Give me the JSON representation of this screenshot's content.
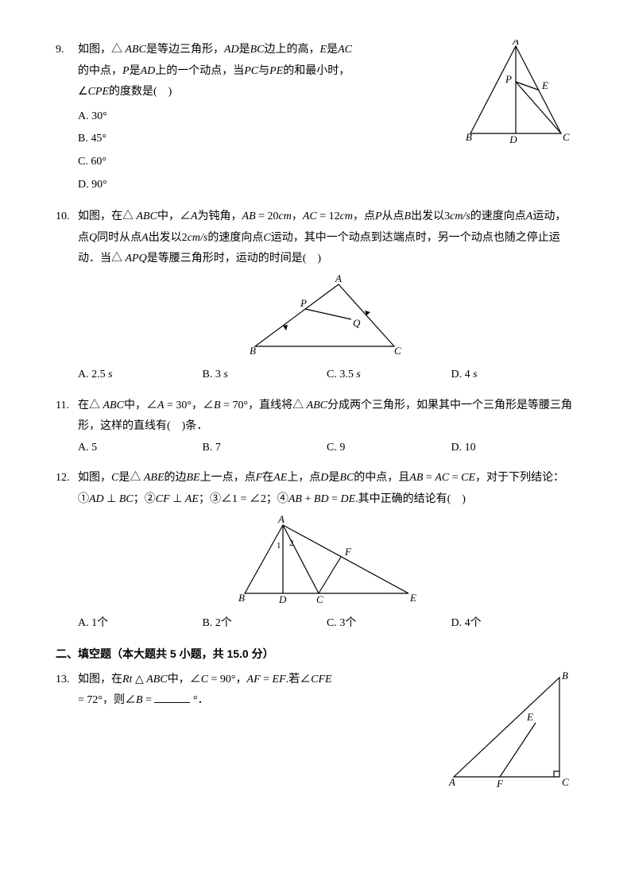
{
  "q9": {
    "num": "9.",
    "text1": "如图，△ <i>ABC</i>是等边三角形，<i>AD</i>是<i>BC</i>边上的高，<i>E</i>是<i>AC</i>",
    "text2": "的中点，<i>P</i>是<i>AD</i>上的一个动点，当<i>PC</i>与<i>PE</i>的和最小时，",
    "text3": "∠<i>CPE</i>的度数是(　)",
    "optA": "A. 30°",
    "optB": "B. 45°",
    "optC": "C. 60°",
    "optD": "D. 90°",
    "fig": {
      "A": "A",
      "B": "B",
      "C": "C",
      "D": "D",
      "E": "E",
      "P": "P"
    }
  },
  "q10": {
    "num": "10.",
    "text": "如图，在△ <i>ABC</i>中，∠<i>A</i>为钝角，<i>AB</i> = 20<i>cm</i>，<i>AC</i> = 12<i>cm</i>，点<i>P</i>从点<i>B</i>出发以3<i>cm/s</i>的速度向点<i>A</i>运动，点<i>Q</i>同时从点<i>A</i>出发以2<i>cm/s</i>的速度向点<i>C</i>运动，其中一个动点到达端点时，另一个动点也随之停止运动．当△ <i>APQ</i>是等腰三角形时，运动的时间是(　)",
    "optA": "A. 2.5 <i>s</i>",
    "optB": "B. 3 <i>s</i>",
    "optC": "C. 3.5 <i>s</i>",
    "optD": "D. 4 <i>s</i>",
    "fig": {
      "A": "A",
      "B": "B",
      "C": "C",
      "P": "P",
      "Q": "Q"
    }
  },
  "q11": {
    "num": "11.",
    "text": "在△ <i>ABC</i>中，∠<i>A</i> = 30°，∠<i>B</i> = 70°，直线将△ <i>ABC</i>分成两个三角形，如果其中一个三角形是等腰三角形，这样的直线有(　)条．",
    "optA": "A. 5",
    "optB": "B. 7",
    "optC": "C. 9",
    "optD": "D. 10"
  },
  "q12": {
    "num": "12.",
    "text": "如图，<i>C</i>是△ <i>ABE</i>的边<i>BE</i>上一点，点<i>F</i>在<i>AE</i>上，点<i>D</i>是<i>BC</i>的中点，且<i>AB</i> = <i>AC</i> = <i>CE</i>，对于下列结论：①<i>AD</i> ⊥ <i>BC</i>；②<i>CF</i> ⊥ <i>AE</i>；③∠1 = ∠2；④<i>AB</i> + <i>BD</i> = <i>DE</i>.其中正确的结论有(　)",
    "optA": "A. 1个",
    "optB": "B. 2个",
    "optC": "C. 3个",
    "optD": "D. 4个",
    "fig": {
      "A": "A",
      "B": "B",
      "C": "C",
      "D": "D",
      "E": "E",
      "F": "F",
      "n1": "1",
      "n2": "2"
    }
  },
  "section2": "二、填空题（本大题共 5 小题，共 15.0 分）",
  "q13": {
    "num": "13.",
    "text1": "如图，在<i>Rt</i> △ <i>ABC</i>中，∠<i>C</i> = 90°，<i>AF</i> = <i>EF</i>.若∠<i>CFE</i>",
    "text2_a": "= 72°，则∠<i>B</i> = ",
    "text2_b": " °．",
    "fig": {
      "A": "A",
      "B": "B",
      "C": "C",
      "E": "E",
      "F": "F"
    }
  }
}
